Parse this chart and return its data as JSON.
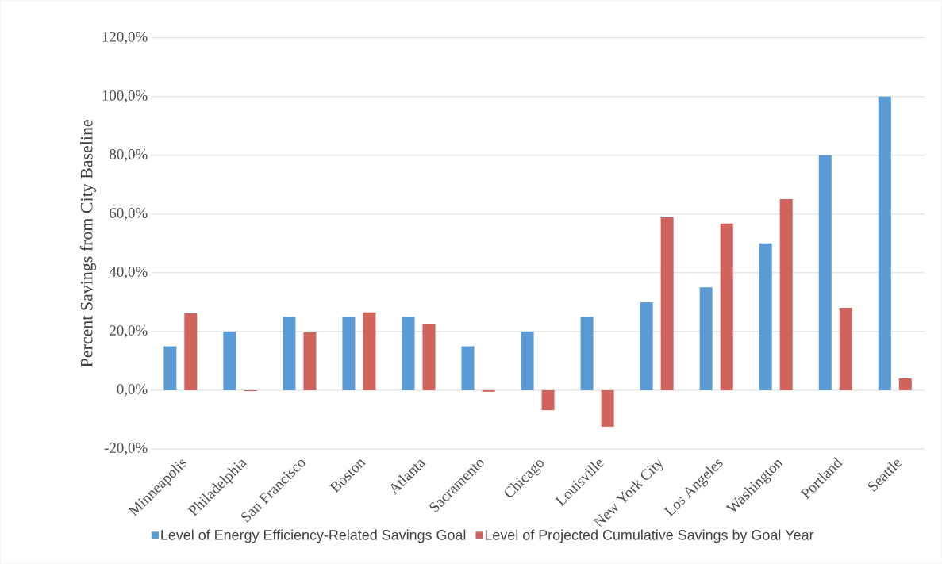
{
  "chart_data": {
    "type": "bar",
    "ylabel": "Percent Savings from City Baseline",
    "categories": [
      "Minneapolis",
      "Philadelphia",
      "San Francisco",
      "Boston",
      "Atlanta",
      "Sacramento",
      "Chicago",
      "Louisville",
      "New York City",
      "Los Angeles",
      "Washington",
      "Portland",
      "Seattle"
    ],
    "series": [
      {
        "name": "Level of Energy Efficiency-Related Savings Goal",
        "color": "#5b9bd5",
        "values": [
          15,
          20,
          25,
          25,
          25,
          15,
          20,
          25,
          30,
          35,
          50,
          80,
          100
        ]
      },
      {
        "name": "Level of Projected Cumulative Savings by Goal Year",
        "color": "#d0645c",
        "values": [
          26.2,
          -0.3,
          19.7,
          26.5,
          22.7,
          -0.5,
          -6.8,
          -12.4,
          58.9,
          56.8,
          65.1,
          28.1,
          4.1
        ]
      }
    ],
    "ylim": [
      -20,
      120
    ],
    "yticks": [
      {
        "value": -20,
        "label": "-20,0%"
      },
      {
        "value": 0,
        "label": "0,0%"
      },
      {
        "value": 20,
        "label": "20,0%"
      },
      {
        "value": 40,
        "label": "40,0%"
      },
      {
        "value": 60,
        "label": "60,0%"
      },
      {
        "value": 80,
        "label": "80,0%"
      },
      {
        "value": 100,
        "label": "100,0%"
      },
      {
        "value": 120,
        "label": "120,0%"
      }
    ],
    "grid": "y",
    "legend": "bottom"
  }
}
